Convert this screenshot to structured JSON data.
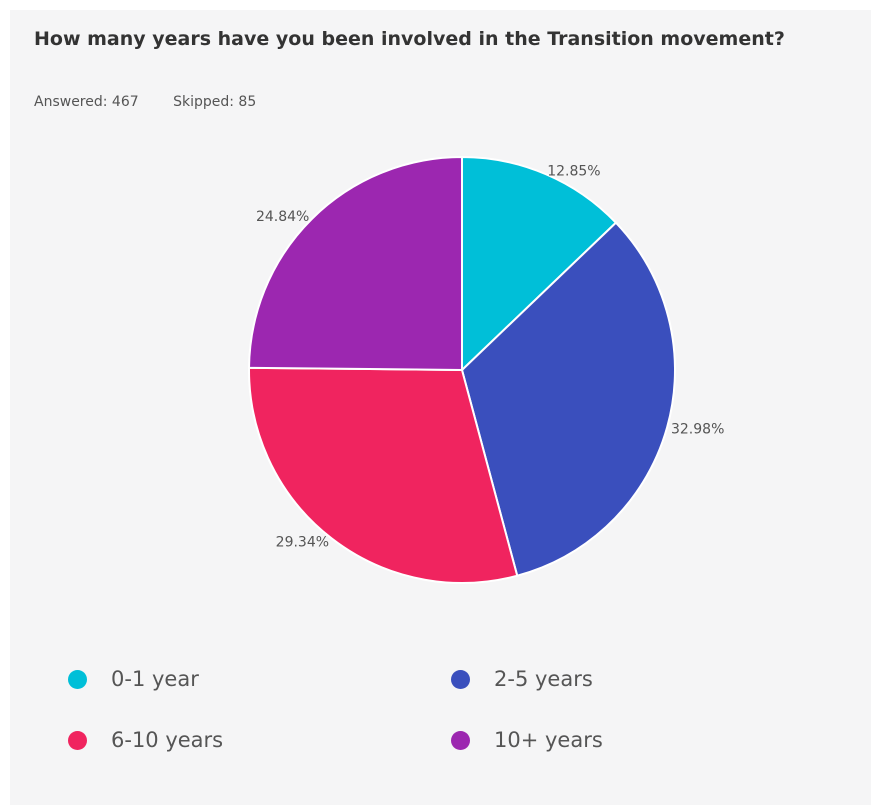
{
  "question": {
    "title": "How many years have you been involved in the Transition movement?",
    "answered": "Answered: 467",
    "skipped": "Skipped: 85"
  },
  "chart_data": {
    "type": "pie",
    "title": "How many years have you been involved in the Transition movement?",
    "categories": [
      "0-1 year",
      "2-5 years",
      "6-10 years",
      "10+ years"
    ],
    "values": [
      12.85,
      32.98,
      29.34,
      24.84
    ],
    "value_labels": [
      "12.85%",
      "32.98%",
      "29.34%",
      "24.84%"
    ],
    "colors": [
      "#00bfd8",
      "#3a4fbd",
      "#f0245f",
      "#9c27b0"
    ],
    "start_angle": "top",
    "direction": "clockwise",
    "legend": "bottom"
  }
}
